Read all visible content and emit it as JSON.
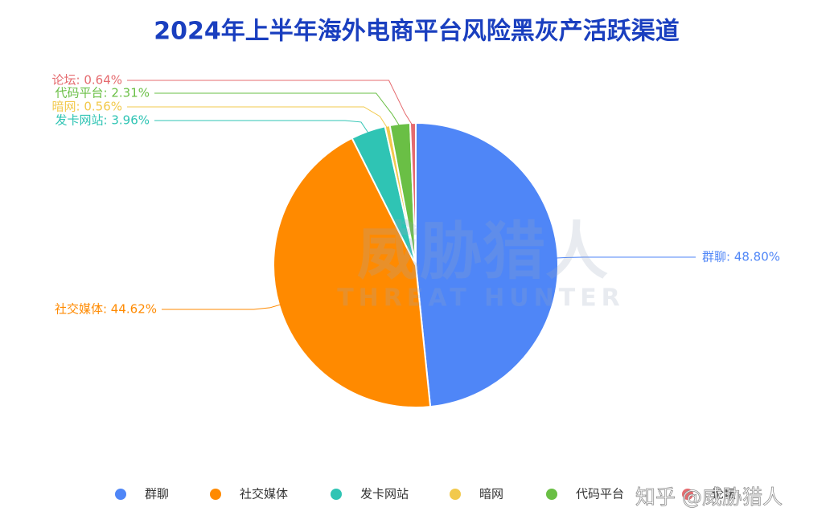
{
  "chart_data": {
    "type": "pie",
    "title": "2024年上半年海外电商平台风险黑灰产活跃渠道",
    "categories": [
      "群聊",
      "社交媒体",
      "发卡网站",
      "暗网",
      "代码平台",
      "论坛"
    ],
    "values": [
      48.8,
      44.62,
      3.96,
      0.56,
      2.31,
      0.64
    ],
    "value_labels": [
      "群聊: 48.80%",
      "社交媒体: 44.62%",
      "发卡网站: 3.96%",
      "暗网: 0.56%",
      "代码平台: 2.31%",
      "论坛: 0.64%"
    ],
    "colors": [
      "#4f86f7",
      "#ff8a00",
      "#2fc4b4",
      "#f2c94c",
      "#6abf45",
      "#e56b6f"
    ],
    "legend": "bottom"
  },
  "watermark": {
    "logo": "威胁猎人",
    "logo_en": "THREAT HUNTER",
    "credit": "知乎 @威胁猎人"
  }
}
